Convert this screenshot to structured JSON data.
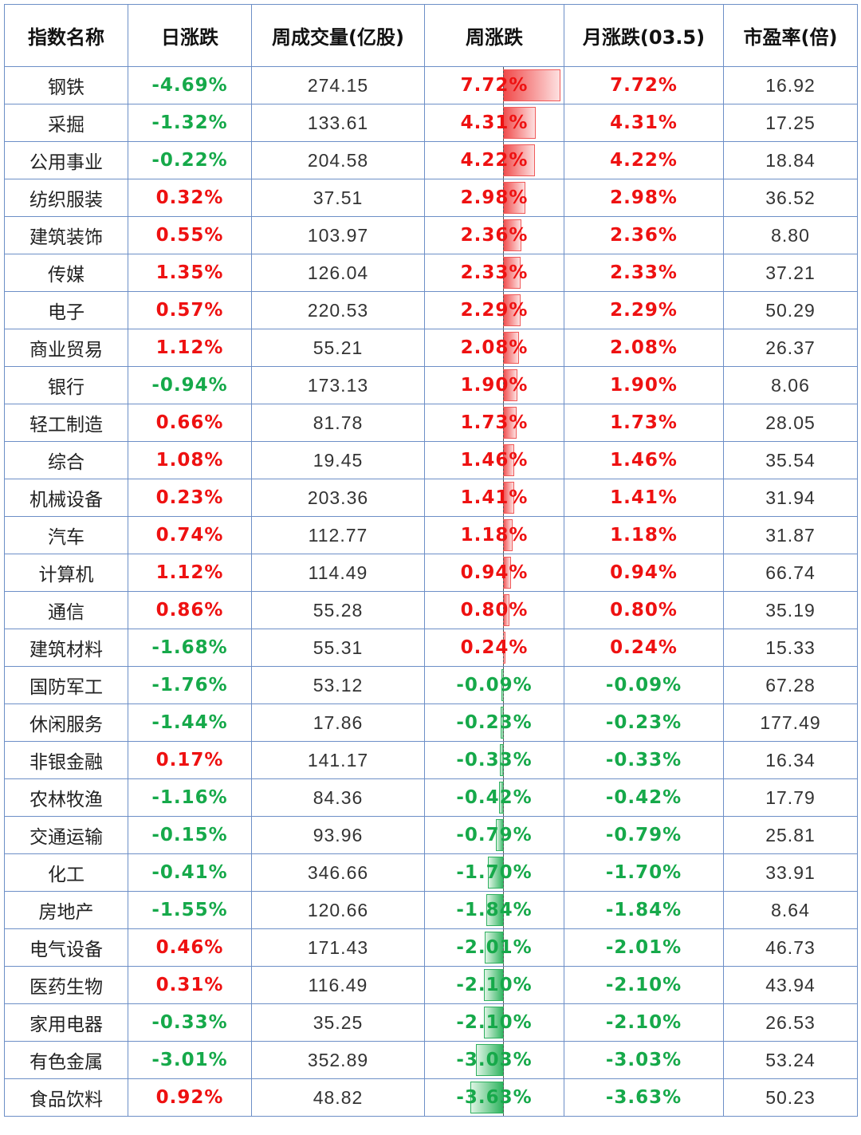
{
  "headers": [
    "指数名称",
    "日涨跌",
    "周成交量(亿股)",
    "周涨跌",
    "月涨跌(03.5)",
    "市盈率(倍)"
  ],
  "colors": {
    "up": "#ee1111",
    "down": "#16a94a",
    "border": "#6d8fc7"
  },
  "bar_scale_max_pct": 7.72,
  "rows": [
    {
      "name": "钢铁",
      "daily": "-4.69%",
      "volume": "274.15",
      "weekly": "7.72%",
      "monthly": "7.72%",
      "pe": "16.92"
    },
    {
      "name": "采掘",
      "daily": "-1.32%",
      "volume": "133.61",
      "weekly": "4.31%",
      "monthly": "4.31%",
      "pe": "17.25"
    },
    {
      "name": "公用事业",
      "daily": "-0.22%",
      "volume": "204.58",
      "weekly": "4.22%",
      "monthly": "4.22%",
      "pe": "18.84"
    },
    {
      "name": "纺织服装",
      "daily": "0.32%",
      "volume": "37.51",
      "weekly": "2.98%",
      "monthly": "2.98%",
      "pe": "36.52"
    },
    {
      "name": "建筑装饰",
      "daily": "0.55%",
      "volume": "103.97",
      "weekly": "2.36%",
      "monthly": "2.36%",
      "pe": "8.80"
    },
    {
      "name": "传媒",
      "daily": "1.35%",
      "volume": "126.04",
      "weekly": "2.33%",
      "monthly": "2.33%",
      "pe": "37.21"
    },
    {
      "name": "电子",
      "daily": "0.57%",
      "volume": "220.53",
      "weekly": "2.29%",
      "monthly": "2.29%",
      "pe": "50.29"
    },
    {
      "name": "商业贸易",
      "daily": "1.12%",
      "volume": "55.21",
      "weekly": "2.08%",
      "monthly": "2.08%",
      "pe": "26.37"
    },
    {
      "name": "银行",
      "daily": "-0.94%",
      "volume": "173.13",
      "weekly": "1.90%",
      "monthly": "1.90%",
      "pe": "8.06"
    },
    {
      "name": "轻工制造",
      "daily": "0.66%",
      "volume": "81.78",
      "weekly": "1.73%",
      "monthly": "1.73%",
      "pe": "28.05"
    },
    {
      "name": "综合",
      "daily": "1.08%",
      "volume": "19.45",
      "weekly": "1.46%",
      "monthly": "1.46%",
      "pe": "35.54"
    },
    {
      "name": "机械设备",
      "daily": "0.23%",
      "volume": "203.36",
      "weekly": "1.41%",
      "monthly": "1.41%",
      "pe": "31.94"
    },
    {
      "name": "汽车",
      "daily": "0.74%",
      "volume": "112.77",
      "weekly": "1.18%",
      "monthly": "1.18%",
      "pe": "31.87"
    },
    {
      "name": "计算机",
      "daily": "1.12%",
      "volume": "114.49",
      "weekly": "0.94%",
      "monthly": "0.94%",
      "pe": "66.74"
    },
    {
      "name": "通信",
      "daily": "0.86%",
      "volume": "55.28",
      "weekly": "0.80%",
      "monthly": "0.80%",
      "pe": "35.19"
    },
    {
      "name": "建筑材料",
      "daily": "-1.68%",
      "volume": "55.31",
      "weekly": "0.24%",
      "monthly": "0.24%",
      "pe": "15.33"
    },
    {
      "name": "国防军工",
      "daily": "-1.76%",
      "volume": "53.12",
      "weekly": "-0.09%",
      "monthly": "-0.09%",
      "pe": "67.28"
    },
    {
      "name": "休闲服务",
      "daily": "-1.44%",
      "volume": "17.86",
      "weekly": "-0.23%",
      "monthly": "-0.23%",
      "pe": "177.49"
    },
    {
      "name": "非银金融",
      "daily": "0.17%",
      "volume": "141.17",
      "weekly": "-0.33%",
      "monthly": "-0.33%",
      "pe": "16.34"
    },
    {
      "name": "农林牧渔",
      "daily": "-1.16%",
      "volume": "84.36",
      "weekly": "-0.42%",
      "monthly": "-0.42%",
      "pe": "17.79"
    },
    {
      "name": "交通运输",
      "daily": "-0.15%",
      "volume": "93.96",
      "weekly": "-0.79%",
      "monthly": "-0.79%",
      "pe": "25.81"
    },
    {
      "name": "化工",
      "daily": "-0.41%",
      "volume": "346.66",
      "weekly": "-1.70%",
      "monthly": "-1.70%",
      "pe": "33.91"
    },
    {
      "name": "房地产",
      "daily": "-1.55%",
      "volume": "120.66",
      "weekly": "-1.84%",
      "monthly": "-1.84%",
      "pe": "8.64"
    },
    {
      "name": "电气设备",
      "daily": "0.46%",
      "volume": "171.43",
      "weekly": "-2.01%",
      "monthly": "-2.01%",
      "pe": "46.73"
    },
    {
      "name": "医药生物",
      "daily": "0.31%",
      "volume": "116.49",
      "weekly": "-2.10%",
      "monthly": "-2.10%",
      "pe": "43.94"
    },
    {
      "name": "家用电器",
      "daily": "-0.33%",
      "volume": "35.25",
      "weekly": "-2.10%",
      "monthly": "-2.10%",
      "pe": "26.53"
    },
    {
      "name": "有色金属",
      "daily": "-3.01%",
      "volume": "352.89",
      "weekly": "-3.03%",
      "monthly": "-3.03%",
      "pe": "53.24"
    },
    {
      "name": "食品饮料",
      "daily": "0.92%",
      "volume": "48.82",
      "weekly": "-3.63%",
      "monthly": "-3.63%",
      "pe": "50.23"
    }
  ]
}
